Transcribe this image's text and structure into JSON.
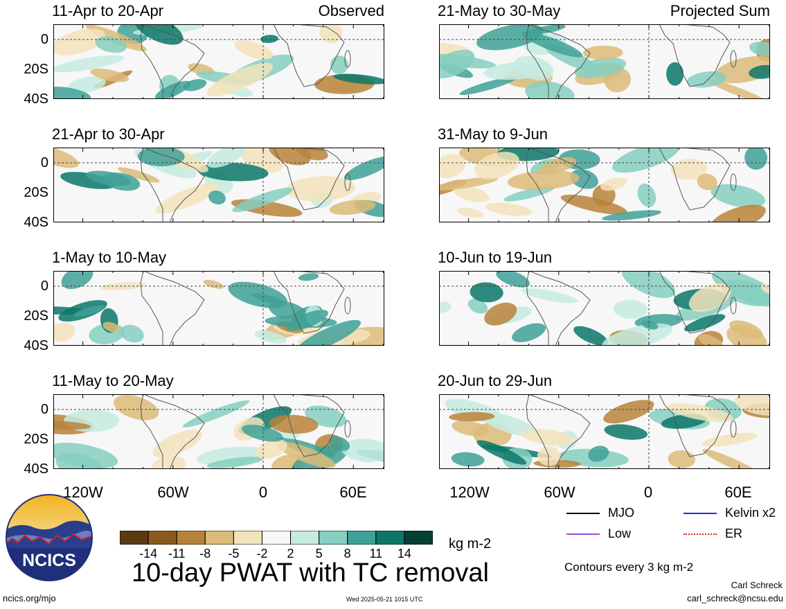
{
  "panels": [
    {
      "col": 0,
      "row": 0,
      "title": "11-Apr to 20-Apr",
      "tag": "Observed"
    },
    {
      "col": 0,
      "row": 1,
      "title": "21-Apr to 30-Apr",
      "tag": ""
    },
    {
      "col": 0,
      "row": 2,
      "title": "1-May to 10-May",
      "tag": ""
    },
    {
      "col": 0,
      "row": 3,
      "title": "11-May to 20-May",
      "tag": ""
    },
    {
      "col": 1,
      "row": 0,
      "title": "21-May to 30-May",
      "tag": "Projected Sum"
    },
    {
      "col": 1,
      "row": 1,
      "title": "31-May to 9-Jun",
      "tag": ""
    },
    {
      "col": 1,
      "row": 2,
      "title": "10-Jun to 19-Jun",
      "tag": ""
    },
    {
      "col": 1,
      "row": 3,
      "title": "20-Jun to 29-Jun",
      "tag": ""
    }
  ],
  "axes": {
    "y_labels": [
      "0",
      "20S",
      "40S"
    ],
    "x_labels": [
      "120W",
      "60W",
      "0",
      "60E"
    ]
  },
  "colorbar": {
    "colors": [
      "#5a3a10",
      "#8b5a1e",
      "#b8823a",
      "#dcbb79",
      "#f3e3bc",
      "#f7f7f7",
      "#c6ebe1",
      "#85cfc0",
      "#3fa197",
      "#0b7768",
      "#063f33"
    ],
    "ticks": [
      "-14",
      "-11",
      "-8",
      "-5",
      "-2",
      "2",
      "5",
      "8",
      "11",
      "14"
    ],
    "units": "kg m-2"
  },
  "title": "10-day PWAT with TC removal",
  "legend": {
    "items": [
      {
        "label": "MJO",
        "color": "#000000",
        "style": "solid"
      },
      {
        "label": "Kelvin x2",
        "color": "#1f2ad6",
        "style": "solid"
      },
      {
        "label": "Low",
        "color": "#9b4fd6",
        "style": "solid"
      },
      {
        "label": "ER",
        "color": "#d42020",
        "style": "dotted"
      }
    ],
    "note": "Contours every 3 kg m-2"
  },
  "logo": {
    "text": "NCICS"
  },
  "footer": {
    "left": "ncics.org/mjo",
    "center": "Wed 2025-05-21 1015 UTC",
    "author": "Carl Schreck",
    "email": "carl_schreck@ncsu.edu"
  }
}
